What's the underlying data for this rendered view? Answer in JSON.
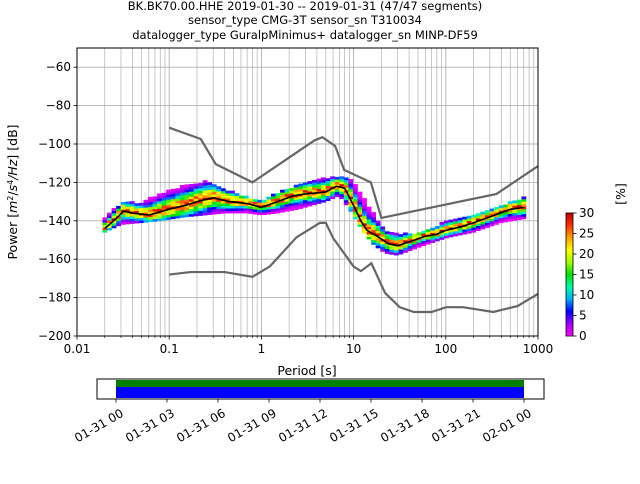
{
  "title_lines": [
    "BK.BK70.00.HHE   2019-01-30 -- 2019-01-31  (47/47 segments)",
    "sensor_type CMG-3T sensor_sn T310034",
    "datalogger_type GuralpMinimus+ datalogger_sn MINP-DF59"
  ],
  "chart_data": {
    "type": "heatmap",
    "xlabel": "Period [s]",
    "ylabel_parts": [
      "Power [",
      "m",
      "2",
      "/",
      "s",
      "4",
      "/Hz",
      "] [dB]"
    ],
    "x_scale": "log",
    "xlim": [
      0.01,
      1000
    ],
    "ylim": [
      -200,
      -50
    ],
    "grid": true,
    "x_ticks": [
      {
        "v": 0.01,
        "label": "0.01"
      },
      {
        "v": 0.1,
        "label": "0.1"
      },
      {
        "v": 1,
        "label": "1"
      },
      {
        "v": 10,
        "label": "10"
      },
      {
        "v": 100,
        "label": "100"
      },
      {
        "v": 1000,
        "label": "1000"
      }
    ],
    "y_ticks": [
      {
        "v": -60,
        "label": "−60"
      },
      {
        "v": -80,
        "label": "−80"
      },
      {
        "v": -100,
        "label": "−100"
      },
      {
        "v": -120,
        "label": "−120"
      },
      {
        "v": -140,
        "label": "−140"
      },
      {
        "v": -160,
        "label": "−160"
      },
      {
        "v": -180,
        "label": "−180"
      },
      {
        "v": -200,
        "label": "−200"
      }
    ],
    "nhnm": [
      [
        0.1,
        -91.5
      ],
      [
        0.22,
        -97.4
      ],
      [
        0.32,
        -110.5
      ],
      [
        0.8,
        -120
      ],
      [
        3.8,
        -98
      ],
      [
        4.6,
        -96.5
      ],
      [
        6.3,
        -101
      ],
      [
        7.9,
        -113.5
      ],
      [
        15.4,
        -120
      ],
      [
        20,
        -138.5
      ],
      [
        354.8,
        -126
      ],
      [
        1000,
        -111.5
      ]
    ],
    "nlnm": [
      [
        0.1,
        -168
      ],
      [
        0.17,
        -166.7
      ],
      [
        0.4,
        -166.7
      ],
      [
        0.8,
        -169.2
      ],
      [
        1.24,
        -163.7
      ],
      [
        2.4,
        -148.6
      ],
      [
        4.3,
        -141.1
      ],
      [
        5,
        -141.1
      ],
      [
        6,
        -149
      ],
      [
        10,
        -163.8
      ],
      [
        12,
        -166.2
      ],
      [
        15.6,
        -162.1
      ],
      [
        21.9,
        -177.5
      ],
      [
        31.6,
        -185
      ],
      [
        45,
        -187.5
      ],
      [
        70,
        -187.5
      ],
      [
        101,
        -185
      ],
      [
        154,
        -185
      ],
      [
        328,
        -187.5
      ],
      [
        600,
        -184.4
      ],
      [
        1000,
        -178
      ]
    ],
    "mode_curve": [
      [
        0.02,
        -144
      ],
      [
        0.025,
        -140
      ],
      [
        0.032,
        -135
      ],
      [
        0.04,
        -136
      ],
      [
        0.06,
        -137
      ],
      [
        0.1,
        -134
      ],
      [
        0.15,
        -132
      ],
      [
        0.2,
        -130
      ],
      [
        0.3,
        -128
      ],
      [
        0.45,
        -130
      ],
      [
        0.7,
        -131
      ],
      [
        1,
        -133
      ],
      [
        1.5,
        -130
      ],
      [
        2.2,
        -127
      ],
      [
        3,
        -126
      ],
      [
        5,
        -125
      ],
      [
        6.5,
        -122
      ],
      [
        8,
        -123
      ],
      [
        10,
        -132
      ],
      [
        12,
        -140
      ],
      [
        14,
        -145
      ],
      [
        18,
        -148
      ],
      [
        24,
        -152
      ],
      [
        30,
        -153
      ],
      [
        40,
        -151
      ],
      [
        60,
        -148
      ],
      [
        80,
        -147
      ],
      [
        100,
        -145
      ],
      [
        150,
        -143
      ],
      [
        200,
        -141
      ],
      [
        300,
        -138
      ],
      [
        500,
        -134
      ],
      [
        700,
        -133
      ]
    ],
    "hist_band": [
      [
        0.02,
        -146,
        -139
      ],
      [
        0.03,
        -142,
        -131
      ],
      [
        0.05,
        -141,
        -131
      ],
      [
        0.08,
        -140,
        -126
      ],
      [
        0.15,
        -138,
        -122
      ],
      [
        0.25,
        -137,
        -120
      ],
      [
        0.4,
        -136,
        -124
      ],
      [
        0.7,
        -136,
        -128
      ],
      [
        1,
        -137,
        -130
      ],
      [
        1.5,
        -136,
        -126
      ],
      [
        2.5,
        -134,
        -122
      ],
      [
        5,
        -130,
        -118
      ],
      [
        7,
        -127,
        -117
      ],
      [
        9,
        -134,
        -118
      ],
      [
        12,
        -144,
        -126
      ],
      [
        16,
        -152,
        -136
      ],
      [
        22,
        -157,
        -146
      ],
      [
        30,
        -158,
        -147
      ],
      [
        50,
        -154,
        -147
      ],
      [
        100,
        -149,
        -141
      ],
      [
        200,
        -146,
        -137
      ],
      [
        400,
        -141,
        -133
      ],
      [
        700,
        -139,
        -128
      ]
    ],
    "colorbar": {
      "label": "[%]",
      "min": 0,
      "max": 30,
      "ticks": [
        {
          "v": 0,
          "label": "0"
        },
        {
          "v": 5,
          "label": "5"
        },
        {
          "v": 10,
          "label": "10"
        },
        {
          "v": 15,
          "label": "15"
        },
        {
          "v": 20,
          "label": "20"
        },
        {
          "v": 25,
          "label": "25"
        },
        {
          "v": 30,
          "label": "30"
        }
      ],
      "colors": [
        "#ff00ff",
        "#a000ff",
        "#0000ff",
        "#00b0ff",
        "#00ffaa",
        "#00e000",
        "#a0ff00",
        "#ffff00",
        "#ffa000",
        "#ff3000",
        "#c00000"
      ]
    }
  },
  "timeline": {
    "tick_labels": [
      "01-31 00",
      "01-31 03",
      "01-31 06",
      "01-31 09",
      "01-31 12",
      "01-31 15",
      "01-31 18",
      "01-31 21",
      "02-01 00"
    ],
    "colors": {
      "data": "#0000ff",
      "gaps": "#008000"
    }
  }
}
